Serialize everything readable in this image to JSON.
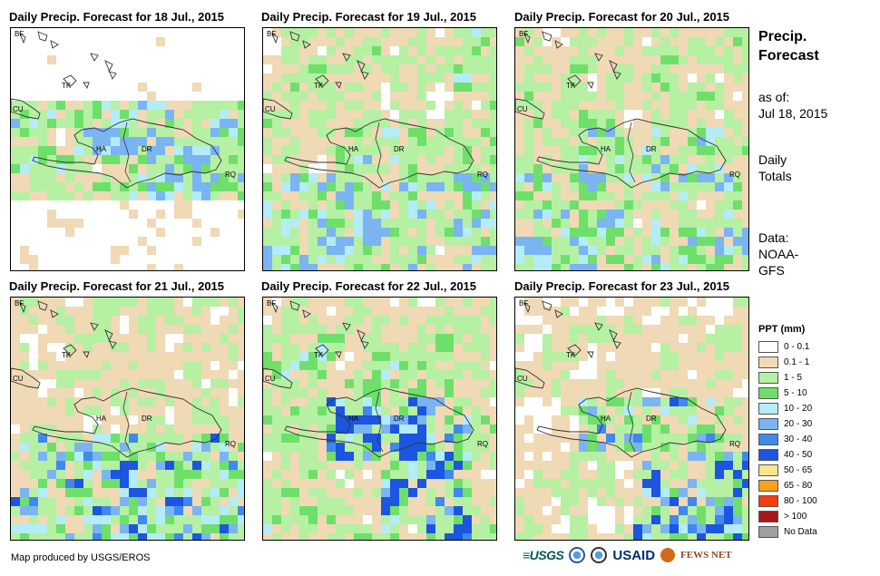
{
  "panels": [
    {
      "title": "Daily Precip. Forecast for 18 Jul., 2015",
      "seed": 11,
      "bias": 0.15,
      "profile": "dry"
    },
    {
      "title": "Daily Precip. Forecast for 19 Jul., 2015",
      "seed": 23,
      "bias": 0.55,
      "profile": "moist"
    },
    {
      "title": "Daily Precip. Forecast for 20 Jul., 2015",
      "seed": 37,
      "bias": 0.45,
      "profile": "moist"
    },
    {
      "title": "Daily Precip. Forecast for 21 Jul., 2015",
      "seed": 41,
      "bias": 0.5,
      "profile": "south"
    },
    {
      "title": "Daily Precip. Forecast for 22 Jul., 2015",
      "seed": 53,
      "bias": 0.55,
      "profile": "wet"
    },
    {
      "title": "Daily Precip. Forecast for 23 Jul., 2015",
      "seed": 67,
      "bias": 0.35,
      "profile": "storm"
    }
  ],
  "map_labels": {
    "bf": "BF",
    "cu": "CU",
    "tk": "TK",
    "ha": "HA",
    "dr": "DR",
    "rq": "RQ"
  },
  "sidebar": {
    "title_line1": "Precip.",
    "title_line2": "Forecast",
    "asof_label": "as of:",
    "asof_date": "Jul 18, 2015",
    "totals_line1": "Daily",
    "totals_line2": "Totals",
    "data_label": "Data:",
    "data_source1": "NOAA-",
    "data_source2": "GFS"
  },
  "legend": {
    "title": "PPT (mm)",
    "items": [
      {
        "label": "0 - 0.1",
        "color": "#ffffff"
      },
      {
        "label": "0.1 - 1",
        "color": "#f0d9b5"
      },
      {
        "label": "1 - 5",
        "color": "#b5f0a3"
      },
      {
        "label": "5 - 10",
        "color": "#6ee06a"
      },
      {
        "label": "10 - 20",
        "color": "#b4ecf7"
      },
      {
        "label": "20 - 30",
        "color": "#7ab4f2"
      },
      {
        "label": "30 - 40",
        "color": "#3f88ee"
      },
      {
        "label": "40 - 50",
        "color": "#1c55e0"
      },
      {
        "label": "50 - 65",
        "color": "#fce589"
      },
      {
        "label": "65 - 80",
        "color": "#fca11a"
      },
      {
        "label": "80 - 100",
        "color": "#fa3c0a"
      },
      {
        "label": "> 100",
        "color": "#a81717"
      },
      {
        "label": "No Data",
        "color": "#a0a0a0"
      }
    ]
  },
  "credit": "Map produced by USGS/EROS",
  "logos": {
    "usgs": "≡USGS",
    "usaid": "USAID",
    "fews": "FEWS NET"
  }
}
